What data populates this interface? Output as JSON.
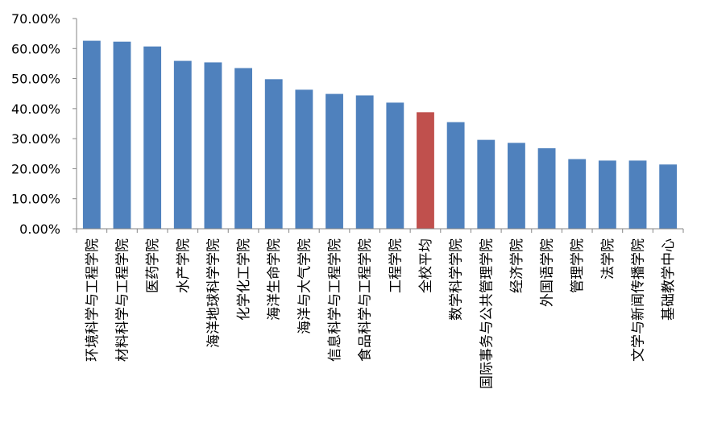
{
  "chart_data": {
    "type": "bar",
    "title": "",
    "xlabel": "",
    "ylabel": "",
    "ylim": [
      0,
      70
    ],
    "yticks": [
      "0.00%",
      "10.00%",
      "20.00%",
      "30.00%",
      "40.00%",
      "50.00%",
      "60.00%",
      "70.00%"
    ],
    "grid": false,
    "legend": "none",
    "categories": [
      "环境科学与工程学院",
      "材料科学与工程学院",
      "医药学院",
      "水产学院",
      "海洋地球科学学院",
      "化学化工学院",
      "海洋生命学院",
      "海洋与大气学院",
      "信息科学与工程学院",
      "食品科学与工程学院",
      "工程学院",
      "全校平均",
      "数学科学学院",
      "国际事务与公共管理学院",
      "经济学院",
      "外国语学院",
      "管理学院",
      "法学院",
      "文学与新闻传播学院",
      "基础教学中心"
    ],
    "values": [
      62.6,
      62.3,
      60.7,
      55.9,
      55.4,
      53.5,
      49.8,
      46.3,
      44.9,
      44.4,
      42.0,
      38.8,
      35.5,
      29.6,
      28.6,
      26.8,
      23.2,
      22.7,
      22.7,
      21.4
    ],
    "colors": {
      "default": "#4F81BD",
      "highlight": "#C0504D",
      "axis": "#868686"
    },
    "highlight_category": "全校平均"
  }
}
